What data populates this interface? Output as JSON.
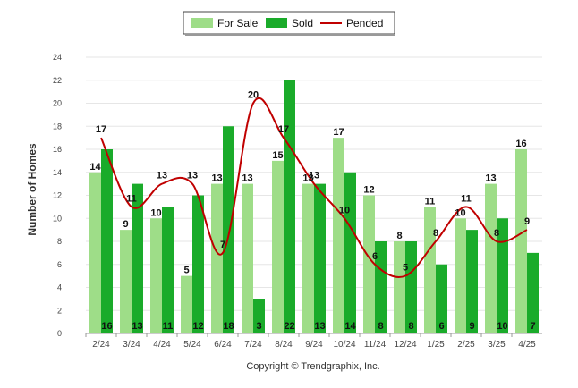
{
  "chart_data": {
    "type": "bar",
    "categories": [
      "2/24",
      "3/24",
      "4/24",
      "5/24",
      "6/24",
      "7/24",
      "8/24",
      "9/24",
      "10/24",
      "11/24",
      "12/24",
      "1/25",
      "2/25",
      "3/25",
      "4/25"
    ],
    "series": [
      {
        "name": "For Sale",
        "kind": "bar",
        "color": "#9edd88",
        "values": [
          14,
          9,
          10,
          5,
          13,
          13,
          15,
          13,
          17,
          12,
          8,
          11,
          10,
          13,
          16
        ]
      },
      {
        "name": "Sold",
        "kind": "bar",
        "color": "#1aab2a",
        "values": [
          16,
          13,
          11,
          12,
          18,
          3,
          22,
          13,
          14,
          8,
          8,
          6,
          9,
          10,
          7
        ]
      },
      {
        "name": "Pended",
        "kind": "line",
        "color": "#c00000",
        "values": [
          17,
          11,
          13,
          13,
          7,
          20,
          17,
          13,
          10,
          6,
          5,
          8,
          11,
          8,
          9
        ]
      }
    ],
    "ylabel": "Number of Homes",
    "xlabel": "",
    "ylim": [
      0,
      24
    ],
    "yticks": [
      0,
      2,
      4,
      6,
      8,
      10,
      12,
      14,
      16,
      18,
      20,
      22,
      24
    ],
    "grid": true,
    "legend_position": "top-center"
  },
  "credit": "Copyright © Trendgraphix, Inc."
}
